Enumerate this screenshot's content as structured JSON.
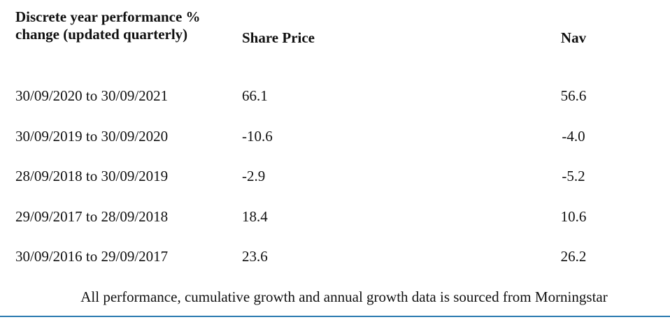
{
  "table": {
    "header": [
      "Discrete year performance % change (updated quarterly)",
      "Share Price",
      "Nav"
    ],
    "rows": [
      [
        "30/09/2020 to 30/09/2021",
        "66.1",
        "56.6"
      ],
      [
        "30/09/2019 to 30/09/2020",
        "-10.6",
        "-4.0"
      ],
      [
        "28/09/2018 to 30/09/2019",
        "-2.9",
        "-5.2"
      ],
      [
        "29/09/2017 to 28/09/2018",
        "18.4",
        "10.6"
      ],
      [
        "30/09/2016 to 29/09/2017",
        "23.6",
        "26.2"
      ]
    ],
    "footnote": "All performance, cumulative growth and annual growth data is sourced from Morningstar"
  }
}
